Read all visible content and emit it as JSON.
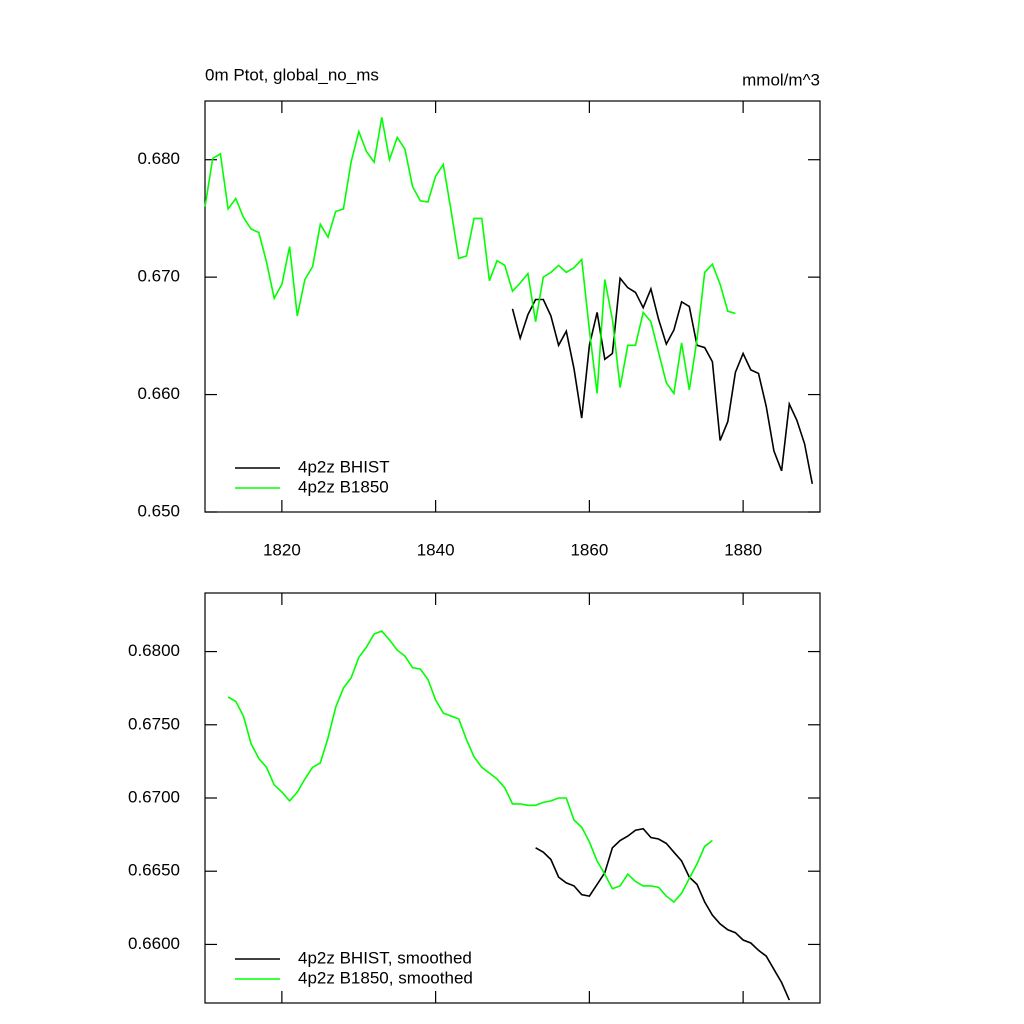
{
  "chart_data": [
    {
      "type": "line",
      "title": "0m Ptot, global_no_ms",
      "subtitle": "mmol/m^3",
      "x": [
        1810,
        1811,
        1812,
        1813,
        1814,
        1815,
        1816,
        1817,
        1818,
        1819,
        1820,
        1821,
        1822,
        1823,
        1824,
        1825,
        1826,
        1827,
        1828,
        1829,
        1830,
        1831,
        1832,
        1833,
        1834,
        1835,
        1836,
        1837,
        1838,
        1839,
        1840,
        1841,
        1842,
        1843,
        1844,
        1845,
        1846,
        1847,
        1848,
        1849,
        1850,
        1851,
        1852,
        1853,
        1854,
        1855,
        1856,
        1857,
        1858,
        1859,
        1860,
        1861,
        1862,
        1863,
        1864,
        1865,
        1866,
        1867,
        1868,
        1869,
        1870,
        1871,
        1872,
        1873,
        1874,
        1875,
        1876,
        1877,
        1878,
        1879,
        1880,
        1881,
        1882,
        1883,
        1884,
        1885,
        1886,
        1887,
        1888,
        1889
      ],
      "series": [
        {
          "name": "4p2z BHIST",
          "color": "#000000",
          "values": [
            null,
            null,
            null,
            null,
            null,
            null,
            null,
            null,
            null,
            null,
            null,
            null,
            null,
            null,
            null,
            null,
            null,
            null,
            null,
            null,
            null,
            null,
            null,
            null,
            null,
            null,
            null,
            null,
            null,
            null,
            null,
            null,
            null,
            null,
            null,
            null,
            null,
            null,
            null,
            null,
            0.6673,
            0.6648,
            0.6668,
            0.6681,
            0.6681,
            0.6667,
            0.6642,
            0.6654,
            0.6622,
            0.658,
            0.6642,
            0.667,
            0.663,
            0.6635,
            0.6699,
            0.6691,
            0.6687,
            0.6674,
            0.669,
            0.6664,
            0.6643,
            0.6655,
            0.6679,
            0.6675,
            0.6642,
            0.664,
            0.6628,
            0.6561,
            0.6577,
            0.6619,
            0.6635,
            0.6621,
            0.6618,
            0.659,
            0.6552,
            0.6535,
            0.6592,
            0.6578,
            0.6558,
            0.6524
          ]
        },
        {
          "name": "4p2z B1850",
          "color": "#00ff00",
          "values": [
            0.676,
            0.6801,
            0.6805,
            0.6758,
            0.6767,
            0.6751,
            0.6741,
            0.6738,
            0.6713,
            0.6682,
            0.6694,
            0.6726,
            0.6667,
            0.6698,
            0.6709,
            0.6745,
            0.6734,
            0.6756,
            0.6758,
            0.6798,
            0.6824,
            0.6807,
            0.6798,
            0.6836,
            0.68,
            0.6819,
            0.6809,
            0.6777,
            0.6765,
            0.6764,
            0.6786,
            0.6796,
            0.6757,
            0.6716,
            0.6718,
            0.675,
            0.675,
            0.6697,
            0.6714,
            0.671,
            0.6688,
            0.6695,
            0.6703,
            0.6662,
            0.67,
            0.6704,
            0.671,
            0.6704,
            0.6708,
            0.6715,
            0.6655,
            0.6601,
            0.6698,
            0.6664,
            0.6606,
            0.6642,
            0.6642,
            0.667,
            0.6662,
            0.6636,
            0.661,
            0.6601,
            0.6644,
            0.6604,
            0.6647,
            0.6704,
            0.6711,
            0.6694,
            0.6671,
            0.6669,
            null,
            null,
            null,
            null,
            null,
            null,
            null,
            null,
            null,
            null
          ]
        }
      ],
      "xlim": [
        1810,
        1890
      ],
      "xticks": [
        1820,
        1840,
        1860,
        1880
      ],
      "ylim": [
        0.65,
        0.685
      ],
      "yticks": [
        {
          "value": 0.65,
          "label": "0.650"
        },
        {
          "value": 0.66,
          "label": "0.660"
        },
        {
          "value": 0.67,
          "label": "0.670"
        },
        {
          "value": 0.68,
          "label": "0.680"
        }
      ],
      "legend": "lower left"
    },
    {
      "type": "line",
      "x": [
        1813,
        1814,
        1815,
        1816,
        1817,
        1818,
        1819,
        1820,
        1821,
        1822,
        1823,
        1824,
        1825,
        1826,
        1827,
        1828,
        1829,
        1830,
        1831,
        1832,
        1833,
        1834,
        1835,
        1836,
        1837,
        1838,
        1839,
        1840,
        1841,
        1842,
        1843,
        1844,
        1845,
        1846,
        1847,
        1848,
        1849,
        1850,
        1851,
        1852,
        1853,
        1854,
        1855,
        1856,
        1857,
        1858,
        1859,
        1860,
        1861,
        1862,
        1863,
        1864,
        1865,
        1866,
        1867,
        1868,
        1869,
        1870,
        1871,
        1872,
        1873,
        1874,
        1875,
        1876,
        1877,
        1878,
        1879,
        1880,
        1881,
        1882,
        1883,
        1884,
        1885,
        1886
      ],
      "series": [
        {
          "name": "4p2z BHIST, smoothed",
          "color": "#000000",
          "values": [
            null,
            null,
            null,
            null,
            null,
            null,
            null,
            null,
            null,
            null,
            null,
            null,
            null,
            null,
            null,
            null,
            null,
            null,
            null,
            null,
            null,
            null,
            null,
            null,
            null,
            null,
            null,
            null,
            null,
            null,
            null,
            null,
            null,
            null,
            null,
            null,
            null,
            null,
            null,
            null,
            0.6666,
            0.6663,
            0.6658,
            0.6646,
            0.6642,
            0.664,
            0.6634,
            0.6633,
            0.6641,
            0.6649,
            0.6666,
            0.6671,
            0.6674,
            0.6678,
            0.6679,
            0.6673,
            0.6672,
            0.6669,
            0.6663,
            0.6657,
            0.6646,
            0.6641,
            0.6629,
            0.662,
            0.6614,
            0.661,
            0.6608,
            0.6603,
            0.6601,
            0.6596,
            0.6592,
            0.6583,
            0.6574,
            0.6562
          ]
        },
        {
          "name": "4p2z B1850, smoothed",
          "color": "#00ff00",
          "values": [
            0.6769,
            0.6766,
            0.6756,
            0.6737,
            0.6727,
            0.6721,
            0.6709,
            0.6704,
            0.6698,
            0.6704,
            0.6713,
            0.6721,
            0.6724,
            0.6741,
            0.6762,
            0.6775,
            0.6782,
            0.6796,
            0.6803,
            0.6812,
            0.6814,
            0.6808,
            0.6801,
            0.6797,
            0.6789,
            0.6788,
            0.6781,
            0.6767,
            0.6758,
            0.6756,
            0.6754,
            0.674,
            0.6728,
            0.6721,
            0.6717,
            0.6713,
            0.6707,
            0.6696,
            0.6696,
            0.6695,
            0.6695,
            0.6697,
            0.6698,
            0.67,
            0.67,
            0.6685,
            0.668,
            0.667,
            0.6657,
            0.6648,
            0.6638,
            0.664,
            0.6648,
            0.6643,
            0.664,
            0.664,
            0.6639,
            0.6633,
            0.6629,
            0.6635,
            0.6645,
            0.6655,
            0.6667,
            0.6671,
            null,
            null,
            null,
            null,
            null,
            null,
            null,
            null,
            null,
            null
          ]
        }
      ],
      "xlim": [
        1810,
        1890
      ],
      "xticks": [
        1820,
        1840,
        1860,
        1880
      ],
      "ylim": [
        0.656,
        0.684
      ],
      "yticks": [
        {
          "value": 0.66,
          "label": "0.6600"
        },
        {
          "value": 0.665,
          "label": "0.6650"
        },
        {
          "value": 0.67,
          "label": "0.6700"
        },
        {
          "value": 0.675,
          "label": "0.6750"
        },
        {
          "value": 0.68,
          "label": "0.6800"
        }
      ],
      "legend": "lower left"
    }
  ]
}
